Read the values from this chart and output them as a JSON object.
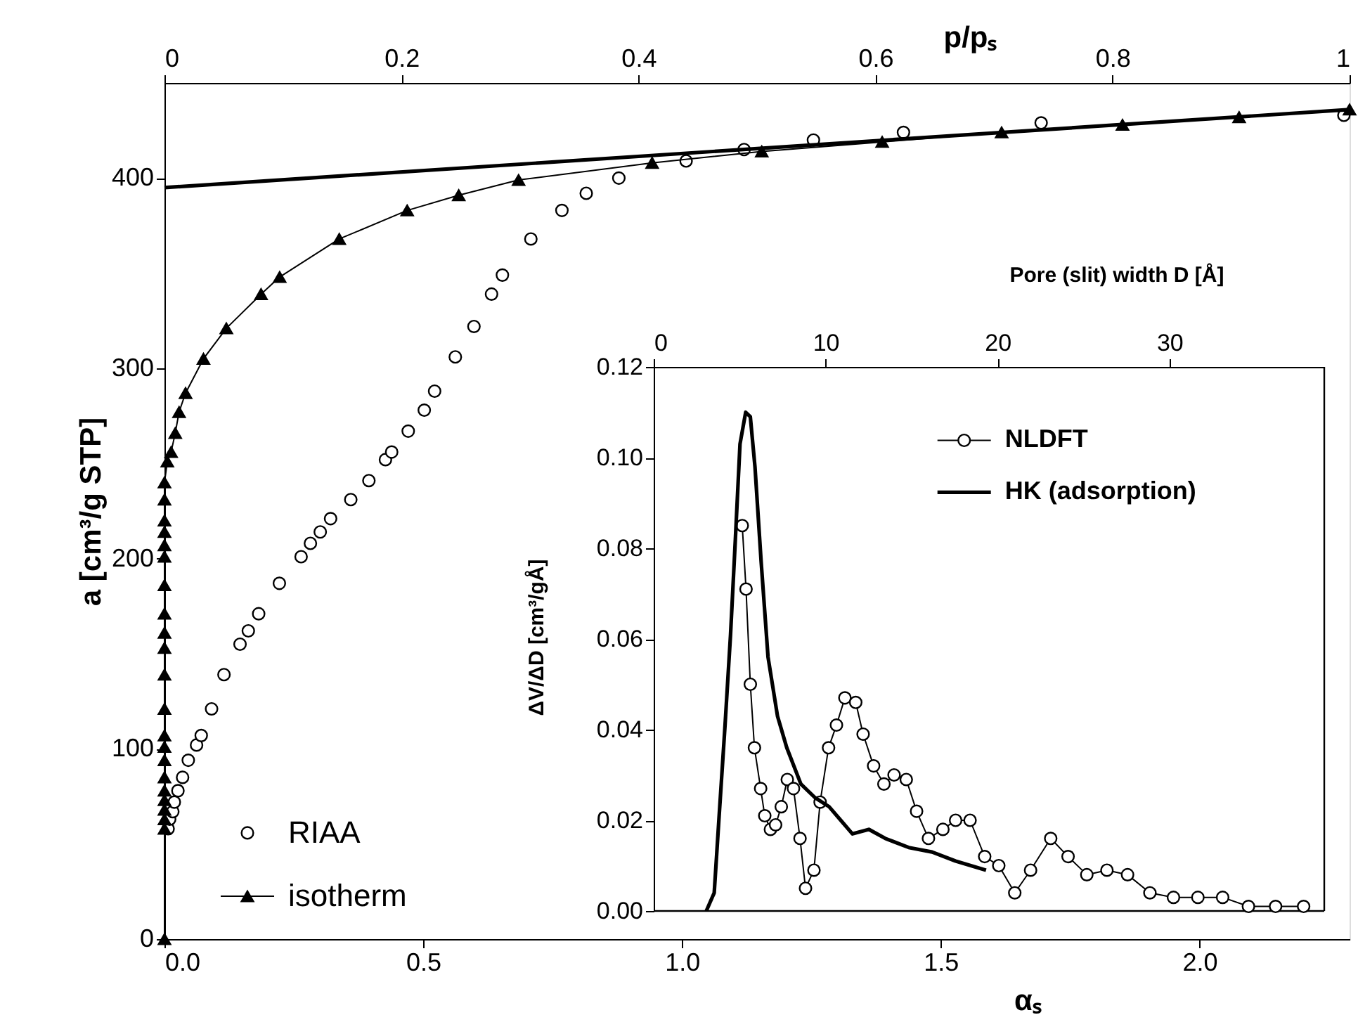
{
  "chart_data": [
    {
      "type": "scatter",
      "xlabel": "αₛ",
      "x2label": "p/pₛ",
      "ylabel": "a [cm³/g STP]",
      "xlim": [
        0,
        2.29
      ],
      "xticks": [
        {
          "value": 0,
          "label": "0.0"
        },
        {
          "value": 0.5,
          "label": "0.5"
        },
        {
          "value": 1,
          "label": "1.0"
        },
        {
          "value": 1.5,
          "label": "1.5"
        },
        {
          "value": 2,
          "label": "2.0"
        }
      ],
      "x2lim": [
        0,
        1
      ],
      "x2ticks": [
        0,
        0.2,
        0.4,
        0.6,
        0.8,
        1
      ],
      "ylim": [
        0,
        450
      ],
      "yticks": [
        0,
        100,
        200,
        300,
        400
      ],
      "grid": false,
      "legend": "bottom left",
      "series": [
        {
          "name": "RIAA",
          "marker": "circle",
          "color": "#000000",
          "x": [
            0.007,
            0.01,
            0.016,
            0.019,
            0.026,
            0.035,
            0.046,
            0.062,
            0.071,
            0.091,
            0.115,
            0.146,
            0.162,
            0.182,
            0.222,
            0.264,
            0.282,
            0.301,
            0.321,
            0.36,
            0.395,
            0.427,
            0.439,
            0.471,
            0.502,
            0.522,
            0.562,
            0.598,
            0.632,
            0.653,
            0.708,
            0.768,
            0.815,
            0.878,
            1.008,
            1.12,
            1.254,
            1.428,
            1.694,
            2.279
          ],
          "values": [
            58,
            63,
            67,
            72,
            78,
            85,
            94,
            102,
            107,
            121,
            139,
            155,
            162,
            171,
            187,
            201,
            208,
            214,
            221,
            231,
            241,
            252,
            256,
            267,
            278,
            288,
            306,
            322,
            339,
            349,
            368,
            383,
            392,
            400,
            409,
            415,
            420,
            424,
            429,
            433
          ]
        },
        {
          "name": "isotherm",
          "type": "line",
          "axis": "x2",
          "marker": "triangle",
          "line_style": "solid",
          "color": "#000000",
          "x": [
            0,
            0,
            0,
            0,
            0,
            0,
            0,
            0,
            0,
            0,
            0,
            0,
            0,
            0,
            0,
            0,
            0,
            0,
            0,
            0,
            0,
            0,
            0.0024,
            0.0056,
            0.0091,
            0.0123,
            0.0178,
            0.0329,
            0.0522,
            0.0815,
            0.0972,
            0.1475,
            0.2048,
            0.2483,
            0.2988,
            0.4115,
            0.504,
            0.6056,
            0.7064,
            0.8084,
            0.9068,
            1.0
          ],
          "values": [
            0,
            58,
            63,
            68,
            73,
            78,
            85,
            94,
            101,
            107,
            121,
            139,
            153,
            161,
            171,
            186,
            201,
            207,
            214,
            220,
            231,
            240,
            251,
            256,
            266,
            277,
            287,
            305,
            321,
            339,
            348,
            368,
            383,
            391,
            399,
            408,
            414,
            419,
            424,
            428,
            432,
            436
          ]
        },
        {
          "type": "line",
          "line_style": "solid",
          "color": "#000000",
          "x": [
            0,
            2.29
          ],
          "values": [
            395,
            436
          ]
        }
      ]
    },
    {
      "type": "line",
      "xlabel": "Pore (slit) width D [Å]",
      "ylabel": "ΔV/ΔD [cm³/gÅ]",
      "xlim": [
        0,
        39
      ],
      "xticks": [
        0,
        10,
        20,
        30
      ],
      "ylim": [
        0,
        0.12
      ],
      "yticks": [
        {
          "value": 0,
          "label": "0.00"
        },
        {
          "value": 0.02,
          "label": "0.02"
        },
        {
          "value": 0.04,
          "label": "0.04"
        },
        {
          "value": 0.06,
          "label": "0.06"
        },
        {
          "value": 0.08,
          "label": "0.08"
        },
        {
          "value": 0.1,
          "label": "0.10"
        },
        {
          "value": 0.12,
          "label": "0.12"
        }
      ],
      "grid": false,
      "legend": "top right",
      "series": [
        {
          "name": "NLDFT",
          "marker": "circle",
          "line_style": "solid",
          "color": "#000000",
          "x": [
            5.15,
            5.37,
            5.62,
            5.86,
            6.22,
            6.46,
            6.79,
            7.09,
            7.42,
            7.77,
            8.13,
            8.51,
            8.83,
            9.32,
            9.68,
            10.17,
            10.63,
            11.12,
            11.75,
            12.18,
            12.79,
            13.39,
            13.98,
            14.69,
            15.29,
            15.98,
            16.82,
            17.56,
            18.4,
            19.25,
            20.07,
            21.0,
            21.92,
            23.09,
            24.1,
            25.19,
            26.36,
            27.56,
            28.86,
            30.23,
            31.65,
            33.09,
            34.59,
            36.17,
            37.8
          ],
          "values": [
            0.085,
            0.071,
            0.05,
            0.036,
            0.027,
            0.021,
            0.018,
            0.019,
            0.023,
            0.029,
            0.027,
            0.016,
            0.005,
            0.009,
            0.024,
            0.036,
            0.041,
            0.047,
            0.046,
            0.039,
            0.032,
            0.028,
            0.03,
            0.029,
            0.022,
            0.016,
            0.018,
            0.02,
            0.02,
            0.012,
            0.01,
            0.004,
            0.009,
            0.016,
            0.012,
            0.008,
            0.009,
            0.008,
            0.004,
            0.003,
            0.003,
            0.003,
            0.001,
            0.001,
            0.001
          ]
        },
        {
          "name": "HK (adsorption)",
          "marker": "none",
          "line_style": "solid",
          "color": "#000000",
          "x": [
            3.06,
            3.52,
            3.79,
            4.15,
            4.47,
            4.75,
            5.02,
            5.35,
            5.62,
            5.89,
            6.25,
            6.65,
            7.2,
            7.74,
            8.56,
            9.38,
            10.2,
            10.88,
            11.56,
            12.51,
            13.47,
            14.83,
            16.19,
            17.56,
            19.33
          ],
          "values": [
            0.0,
            0.004,
            0.02,
            0.041,
            0.061,
            0.082,
            0.103,
            0.11,
            0.109,
            0.098,
            0.077,
            0.056,
            0.043,
            0.036,
            0.028,
            0.025,
            0.023,
            0.02,
            0.017,
            0.018,
            0.016,
            0.014,
            0.013,
            0.011,
            0.009
          ]
        }
      ]
    }
  ]
}
